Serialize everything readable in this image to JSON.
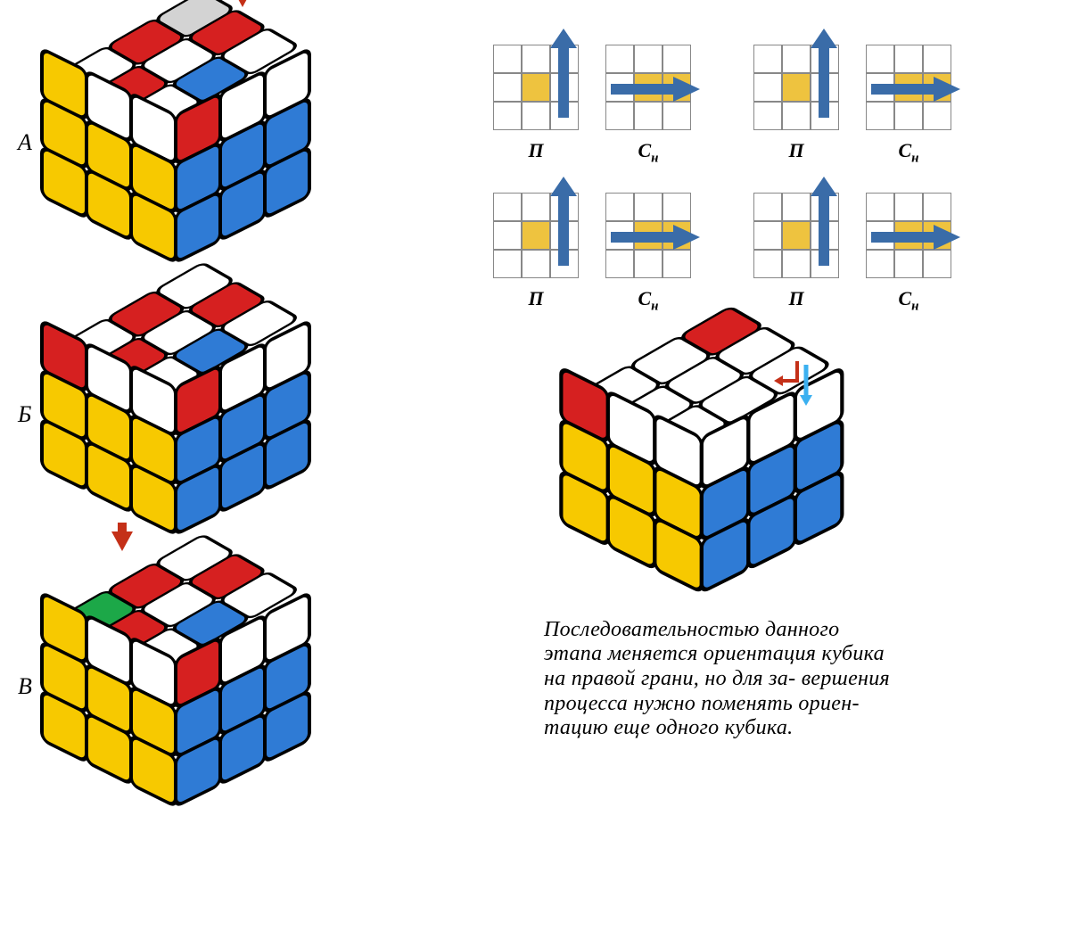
{
  "colors": {
    "white": "#ffffff",
    "yellow": "#f7c900",
    "yellow2": "#eec33f",
    "blue": "#2f7bd5",
    "red": "#d62020",
    "green": "#1ca848",
    "grey": "#d3d3d3",
    "arrow_blue": "#3a6ca8",
    "arrow_red": "#c43018",
    "cyan": "#3bb0f0",
    "border": "#888888"
  },
  "cubes": [
    {
      "label": "А",
      "arrow": {
        "show": true,
        "col": 2
      },
      "top": [
        "white",
        "red",
        "grey",
        "red",
        "white",
        "red",
        "white",
        "blue",
        "white"
      ],
      "left": [
        "yellow",
        "white",
        "white",
        "yellow",
        "yellow",
        "yellow",
        "yellow",
        "yellow",
        "yellow"
      ],
      "right": [
        "red",
        "white",
        "white",
        "blue",
        "blue",
        "blue",
        "blue",
        "blue",
        "blue"
      ]
    },
    {
      "label": "Б",
      "arrow": {
        "show": false
      },
      "top": [
        "white",
        "red",
        "white",
        "red",
        "white",
        "red",
        "white",
        "blue",
        "white"
      ],
      "left": [
        "red",
        "white",
        "white",
        "yellow",
        "yellow",
        "yellow",
        "yellow",
        "yellow",
        "yellow"
      ],
      "right": [
        "red",
        "white",
        "white",
        "blue",
        "blue",
        "blue",
        "blue",
        "blue",
        "blue"
      ]
    },
    {
      "label": "В",
      "arrow": {
        "show": true,
        "col": 0
      },
      "top": [
        "green",
        "red",
        "white",
        "red",
        "white",
        "red",
        "white",
        "blue",
        "white"
      ],
      "left": [
        "yellow",
        "white",
        "white",
        "yellow",
        "yellow",
        "yellow",
        "yellow",
        "yellow",
        "yellow"
      ],
      "right": [
        "red",
        "white",
        "white",
        "blue",
        "blue",
        "blue",
        "blue",
        "blue",
        "blue"
      ]
    }
  ],
  "right_cube": {
    "top": [
      "white",
      "white",
      "red",
      "white",
      "white",
      "white",
      "white",
      "white",
      "white"
    ],
    "left": [
      "red",
      "white",
      "white",
      "yellow",
      "yellow",
      "yellow",
      "yellow",
      "yellow",
      "yellow"
    ],
    "right": [
      "white",
      "white",
      "white",
      "blue",
      "blue",
      "blue",
      "blue",
      "blue",
      "blue"
    ],
    "swap_arrows": true
  },
  "notation": {
    "rows": [
      [
        {
          "type": "R",
          "label": "П",
          "center": true,
          "yellow_right": false
        },
        {
          "type": "M",
          "label": "С",
          "sub": "н",
          "center": true,
          "yellow_right": true
        },
        {
          "type": "R",
          "label": "П",
          "center": true,
          "yellow_right": false
        },
        {
          "type": "M",
          "label": "С",
          "sub": "н",
          "center": true,
          "yellow_right": true
        }
      ],
      [
        {
          "type": "R",
          "label": "П",
          "center": true,
          "yellow_right": false
        },
        {
          "type": "M",
          "label": "С",
          "sub": "н",
          "center": true,
          "yellow_right": true
        },
        {
          "type": "R",
          "label": "П",
          "center": true,
          "yellow_right": false
        },
        {
          "type": "M",
          "label": "С",
          "sub": "н",
          "center": true,
          "yellow_right": true
        }
      ]
    ]
  },
  "description": "Последовательностью данного этапа меняется ориентация кубика на правой грани, но для за-\nвершения процесса нужно поменять ориен-\nтацию еще одного кубика."
}
